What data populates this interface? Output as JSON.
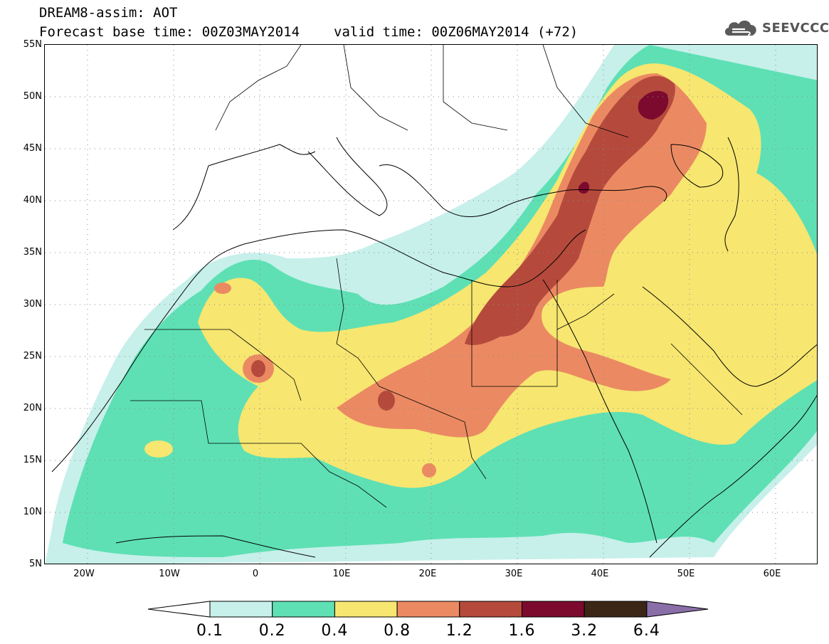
{
  "header": {
    "title": "DREAM8-assim: AOT",
    "base_time_label": "Forecast base time: 00Z03MAY2014",
    "valid_time_label": "valid time: 00Z06MAY2014 (+72)"
  },
  "logo": {
    "text": "SEEVCCC",
    "icon": "cloud-icon",
    "color": "#5a5a5a"
  },
  "map": {
    "projection": "lat-lon",
    "lon_range": [
      -25,
      65
    ],
    "lat_range": [
      5,
      55
    ],
    "lat_ticks": [
      "55N",
      "50N",
      "45N",
      "40N",
      "35N",
      "30N",
      "25N",
      "20N",
      "15N",
      "10N",
      "5N"
    ],
    "lon_ticks": [
      "20W",
      "10W",
      "0",
      "10E",
      "20E",
      "30E",
      "40E",
      "50E",
      "60E"
    ],
    "grid": "dotted"
  },
  "colorbar": {
    "labels": [
      "0.1",
      "0.2",
      "0.4",
      "0.8",
      "1.2",
      "1.6",
      "3.2",
      "6.4"
    ],
    "colors": [
      "#c7f0ea",
      "#5ee0b4",
      "#f7e670",
      "#eb8a62",
      "#b54a3c",
      "#7c0a2e",
      "#3c2717",
      "#8a6ea8"
    ],
    "arrow_left": "open",
    "arrow_right": "filled"
  }
}
